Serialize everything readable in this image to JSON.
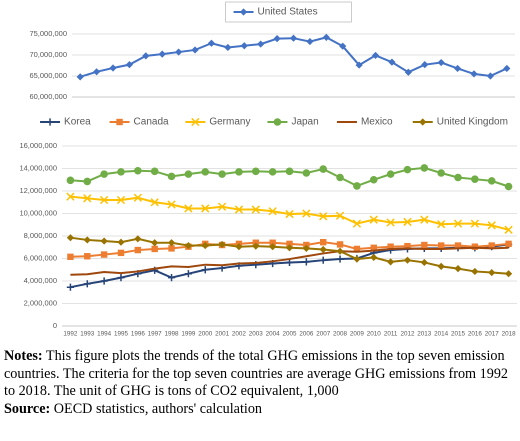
{
  "chart_data": [
    {
      "type": "line",
      "categories": [
        "1992",
        "1993",
        "1994",
        "1995",
        "1996",
        "1997",
        "1998",
        "1999",
        "2000",
        "2001",
        "2002",
        "2003",
        "2004",
        "2005",
        "2006",
        "2007",
        "2008",
        "2009",
        "2010",
        "2011",
        "2012",
        "2013",
        "2014",
        "2015",
        "2016",
        "2017",
        "2018"
      ],
      "ylim": [
        60000000,
        75000000
      ],
      "yticks": [
        {
          "value": 60000000,
          "label": "60,000,000"
        },
        {
          "value": 65000000,
          "label": "65,000,000"
        },
        {
          "value": 70000000,
          "label": "70,000,000"
        },
        {
          "value": 75000000,
          "label": "75,000,000"
        }
      ],
      "grid": true,
      "legend": "top",
      "series": [
        {
          "name": "United States",
          "color": "#4472c4",
          "marker": "diamond",
          "values": [
            64800000,
            66000000,
            66900000,
            67700000,
            69800000,
            70200000,
            70700000,
            71200000,
            72800000,
            71800000,
            72200000,
            72600000,
            73900000,
            74000000,
            73200000,
            74200000,
            72100000,
            67600000,
            69900000,
            68300000,
            65900000,
            67700000,
            68200000,
            66800000,
            65500000,
            65000000,
            66800000
          ]
        }
      ]
    },
    {
      "type": "line",
      "categories": [
        "1992",
        "1993",
        "1994",
        "1995",
        "1996",
        "1997",
        "1998",
        "1999",
        "2000",
        "2001",
        "2002",
        "2003",
        "2004",
        "2005",
        "2006",
        "2007",
        "2008",
        "2009",
        "2010",
        "2011",
        "2012",
        "2013",
        "2014",
        "2015",
        "2016",
        "2017",
        "2018"
      ],
      "ylim": [
        0,
        16000000
      ],
      "yticks": [
        0,
        {
          "value": 2000000,
          "label": "2,000,000"
        },
        {
          "value": 4000000,
          "label": "4,000,000"
        },
        {
          "value": 6000000,
          "label": "6,000,000"
        },
        {
          "value": 8000000,
          "label": "8,000,000"
        },
        {
          "value": 10000000,
          "label": "10,000,000"
        },
        {
          "value": 12000000,
          "label": "12,000,000"
        },
        {
          "value": 14000000,
          "label": "14,000,000"
        },
        {
          "value": 16000000,
          "label": "16,000,000"
        }
      ],
      "grid": true,
      "legend": "top",
      "series": [
        {
          "name": "Korea",
          "color": "#264478",
          "marker": "plus",
          "values": [
            3450000,
            3750000,
            4000000,
            4300000,
            4650000,
            4950000,
            4300000,
            4650000,
            5000000,
            5150000,
            5350000,
            5450000,
            5550000,
            5650000,
            5700000,
            5850000,
            5950000,
            6000000,
            6500000,
            6750000,
            6850000,
            6900000,
            6900000,
            6950000,
            6950000,
            7050000,
            7250000
          ]
        },
        {
          "name": "Canada",
          "color": "#ed7d31",
          "marker": "square",
          "values": [
            6150000,
            6200000,
            6350000,
            6500000,
            6750000,
            6850000,
            6900000,
            7050000,
            7300000,
            7200000,
            7300000,
            7400000,
            7400000,
            7300000,
            7200000,
            7450000,
            7250000,
            6850000,
            6950000,
            7050000,
            7100000,
            7200000,
            7150000,
            7150000,
            7050000,
            7150000,
            7300000
          ]
        },
        {
          "name": "Germany",
          "color": "#ffc000",
          "marker": "x",
          "values": [
            11500000,
            11350000,
            11200000,
            11200000,
            11400000,
            11000000,
            10800000,
            10450000,
            10450000,
            10600000,
            10350000,
            10350000,
            10200000,
            9950000,
            10000000,
            9750000,
            9800000,
            9100000,
            9450000,
            9200000,
            9250000,
            9450000,
            9050000,
            9100000,
            9100000,
            8950000,
            8550000
          ]
        },
        {
          "name": "Japan",
          "color": "#70ad47",
          "marker": "circle",
          "values": [
            12950000,
            12850000,
            13500000,
            13700000,
            13800000,
            13750000,
            13300000,
            13500000,
            13700000,
            13500000,
            13700000,
            13750000,
            13700000,
            13750000,
            13600000,
            13950000,
            13200000,
            12450000,
            13000000,
            13500000,
            13900000,
            14050000,
            13600000,
            13200000,
            13050000,
            12900000,
            12400000
          ]
        },
        {
          "name": "Mexico",
          "color": "#9e480e",
          "marker": "none",
          "values": [
            4550000,
            4600000,
            4800000,
            4700000,
            4850000,
            5100000,
            5300000,
            5250000,
            5450000,
            5400000,
            5550000,
            5600000,
            5750000,
            5950000,
            6200000,
            6450000,
            6650000,
            6600000,
            6700000,
            6850000,
            6900000,
            6850000,
            6850000,
            6900000,
            6950000,
            6900000,
            6950000
          ]
        },
        {
          "name": "United Kingdom",
          "color": "#997300",
          "marker": "diamond",
          "values": [
            7850000,
            7650000,
            7550000,
            7450000,
            7750000,
            7400000,
            7400000,
            7150000,
            7150000,
            7250000,
            7050000,
            7100000,
            7050000,
            6950000,
            6900000,
            6800000,
            6650000,
            5950000,
            6100000,
            5700000,
            5850000,
            5650000,
            5300000,
            5100000,
            4850000,
            4750000,
            4650000
          ]
        }
      ]
    }
  ],
  "notes": {
    "label": "Notes:",
    "text": "This figure plots the trends of the total GHG emissions in the top seven emission countries. The criteria for the top seven countries are average GHG emissions from 1992 to 2018. The unit of GHG is tons of CO2 equivalent, 1,000"
  },
  "source": {
    "label": "Source:",
    "text": "OECD statistics, authors' calculation"
  }
}
